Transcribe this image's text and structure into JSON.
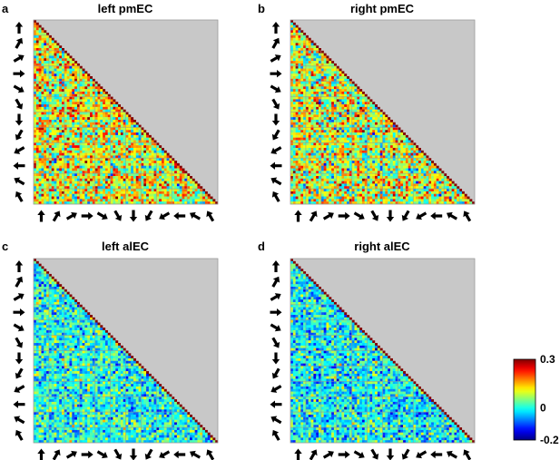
{
  "figure": {
    "panel_letters": [
      "a",
      "b",
      "c",
      "d"
    ],
    "colorbar": {
      "ticks": [
        "0.3",
        "0",
        "-0.2"
      ],
      "vmin": -0.2,
      "vmax": 0.3
    }
  },
  "chart_data": [
    {
      "type": "heatmap",
      "title": "left pmEC",
      "layout": "lower-triangle",
      "grid": "12x12 blocks, 6x6 cells per block",
      "direction_labels": [
        "up",
        "up-right",
        "right-up",
        "right",
        "right-down",
        "down-right",
        "down",
        "down-left",
        "left-down",
        "left",
        "left-up",
        "up-left"
      ],
      "color_scale": "jet",
      "value_range": [
        -0.2,
        0.3
      ],
      "mean_value": 0.1
    },
    {
      "type": "heatmap",
      "title": "right pmEC",
      "layout": "lower-triangle",
      "grid": "12x12 blocks, 6x6 cells per block",
      "direction_labels": [
        "up",
        "up-right",
        "right-up",
        "right",
        "right-down",
        "down-right",
        "down",
        "down-left",
        "left-down",
        "left",
        "left-up",
        "up-left"
      ],
      "color_scale": "jet",
      "value_range": [
        -0.2,
        0.3
      ],
      "mean_value": 0.09
    },
    {
      "type": "heatmap",
      "title": "left alEC",
      "layout": "lower-triangle",
      "grid": "12x12 blocks, 6x6 cells per block",
      "direction_labels": [
        "up",
        "up-right",
        "right-up",
        "right",
        "right-down",
        "down-right",
        "down",
        "down-left",
        "left-down",
        "left",
        "left-up",
        "up-left"
      ],
      "color_scale": "jet",
      "value_range": [
        -0.2,
        0.3
      ],
      "mean_value": 0.0
    },
    {
      "type": "heatmap",
      "title": "right alEC",
      "layout": "lower-triangle",
      "grid": "12x12 blocks, 6x6 cells per block",
      "direction_labels": [
        "up",
        "up-right",
        "right-up",
        "right",
        "right-down",
        "down-right",
        "down",
        "down-left",
        "left-down",
        "left",
        "left-up",
        "up-left"
      ],
      "color_scale": "jet",
      "value_range": [
        -0.2,
        0.3
      ],
      "mean_value": -0.01
    }
  ]
}
